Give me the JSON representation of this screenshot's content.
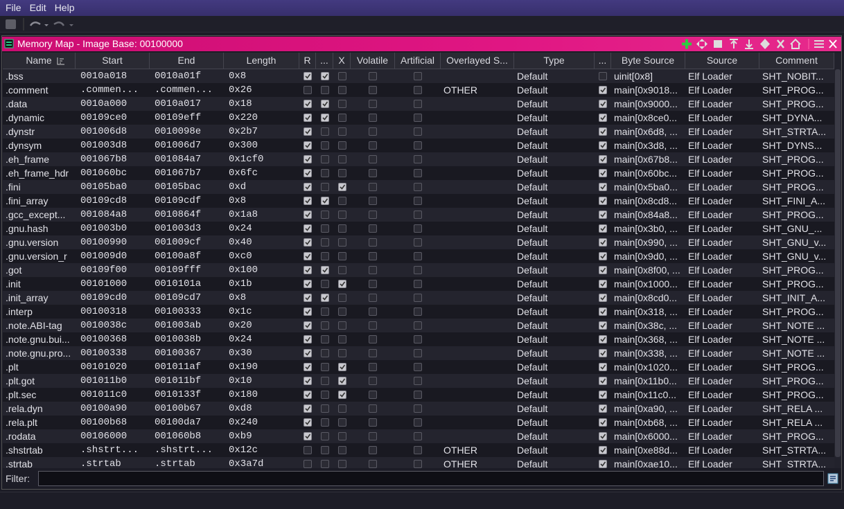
{
  "menu": {
    "items": [
      "File",
      "Edit",
      "Help"
    ]
  },
  "window": {
    "title": "Memory Map - Image Base: 00100000"
  },
  "table": {
    "columns": [
      "Name",
      "Start",
      "End",
      "Length",
      "R",
      "...",
      "X",
      "Volatile",
      "Artificial",
      "Overlayed S...",
      "Type",
      "...",
      "Byte Source",
      "Source",
      "Comment"
    ],
    "rows": [
      [
        ".bss",
        "0010a018",
        "0010a01f",
        "0x8",
        true,
        true,
        false,
        false,
        false,
        null,
        "Default",
        false,
        "uinit[0x8]",
        "Elf Loader",
        "SHT_NOBIT..."
      ],
      [
        ".comment",
        ".commen...",
        ".commen...",
        "0x26",
        false,
        false,
        false,
        false,
        false,
        "OTHER",
        "Default",
        true,
        "main[0x9018...",
        "Elf Loader",
        "SHT_PROG..."
      ],
      [
        ".data",
        "0010a000",
        "0010a017",
        "0x18",
        true,
        true,
        false,
        false,
        false,
        null,
        "Default",
        true,
        "main[0x9000...",
        "Elf Loader",
        "SHT_PROG..."
      ],
      [
        ".dynamic",
        "00109ce0",
        "00109eff",
        "0x220",
        true,
        true,
        false,
        false,
        false,
        null,
        "Default",
        true,
        "main[0x8ce0...",
        "Elf Loader",
        "SHT_DYNA..."
      ],
      [
        ".dynstr",
        "001006d8",
        "0010098e",
        "0x2b7",
        true,
        false,
        false,
        false,
        false,
        null,
        "Default",
        true,
        "main[0x6d8, ...",
        "Elf Loader",
        "SHT_STRTA..."
      ],
      [
        ".dynsym",
        "001003d8",
        "001006d7",
        "0x300",
        true,
        false,
        false,
        false,
        false,
        null,
        "Default",
        true,
        "main[0x3d8, ...",
        "Elf Loader",
        "SHT_DYNS..."
      ],
      [
        ".eh_frame",
        "001067b8",
        "001084a7",
        "0x1cf0",
        true,
        false,
        false,
        false,
        false,
        null,
        "Default",
        true,
        "main[0x67b8...",
        "Elf Loader",
        "SHT_PROG..."
      ],
      [
        ".eh_frame_hdr",
        "001060bc",
        "001067b7",
        "0x6fc",
        true,
        false,
        false,
        false,
        false,
        null,
        "Default",
        true,
        "main[0x60bc...",
        "Elf Loader",
        "SHT_PROG..."
      ],
      [
        ".fini",
        "00105ba0",
        "00105bac",
        "0xd",
        true,
        false,
        true,
        false,
        false,
        null,
        "Default",
        true,
        "main[0x5ba0...",
        "Elf Loader",
        "SHT_PROG..."
      ],
      [
        ".fini_array",
        "00109cd8",
        "00109cdf",
        "0x8",
        true,
        true,
        false,
        false,
        false,
        null,
        "Default",
        true,
        "main[0x8cd8...",
        "Elf Loader",
        "SHT_FINI_A..."
      ],
      [
        ".gcc_except...",
        "001084a8",
        "0010864f",
        "0x1a8",
        true,
        false,
        false,
        false,
        false,
        null,
        "Default",
        true,
        "main[0x84a8...",
        "Elf Loader",
        "SHT_PROG..."
      ],
      [
        ".gnu.hash",
        "001003b0",
        "001003d3",
        "0x24",
        true,
        false,
        false,
        false,
        false,
        null,
        "Default",
        true,
        "main[0x3b0, ...",
        "Elf Loader",
        "SHT_GNU_..."
      ],
      [
        ".gnu.version",
        "00100990",
        "001009cf",
        "0x40",
        true,
        false,
        false,
        false,
        false,
        null,
        "Default",
        true,
        "main[0x990, ...",
        "Elf Loader",
        "SHT_GNU_v..."
      ],
      [
        ".gnu.version_r",
        "001009d0",
        "00100a8f",
        "0xc0",
        true,
        false,
        false,
        false,
        false,
        null,
        "Default",
        true,
        "main[0x9d0, ...",
        "Elf Loader",
        "SHT_GNU_v..."
      ],
      [
        ".got",
        "00109f00",
        "00109fff",
        "0x100",
        true,
        true,
        false,
        false,
        false,
        null,
        "Default",
        true,
        "main[0x8f00, ...",
        "Elf Loader",
        "SHT_PROG..."
      ],
      [
        ".init",
        "00101000",
        "0010101a",
        "0x1b",
        true,
        false,
        true,
        false,
        false,
        null,
        "Default",
        true,
        "main[0x1000...",
        "Elf Loader",
        "SHT_PROG..."
      ],
      [
        ".init_array",
        "00109cd0",
        "00109cd7",
        "0x8",
        true,
        true,
        false,
        false,
        false,
        null,
        "Default",
        true,
        "main[0x8cd0...",
        "Elf Loader",
        "SHT_INIT_A..."
      ],
      [
        ".interp",
        "00100318",
        "00100333",
        "0x1c",
        true,
        false,
        false,
        false,
        false,
        null,
        "Default",
        true,
        "main[0x318, ...",
        "Elf Loader",
        "SHT_PROG..."
      ],
      [
        ".note.ABI-tag",
        "0010038c",
        "001003ab",
        "0x20",
        true,
        false,
        false,
        false,
        false,
        null,
        "Default",
        true,
        "main[0x38c, ...",
        "Elf Loader",
        "SHT_NOTE ..."
      ],
      [
        ".note.gnu.bui...",
        "00100368",
        "0010038b",
        "0x24",
        true,
        false,
        false,
        false,
        false,
        null,
        "Default",
        true,
        "main[0x368, ...",
        "Elf Loader",
        "SHT_NOTE ..."
      ],
      [
        ".note.gnu.pro...",
        "00100338",
        "00100367",
        "0x30",
        true,
        false,
        false,
        false,
        false,
        null,
        "Default",
        true,
        "main[0x338, ...",
        "Elf Loader",
        "SHT_NOTE ..."
      ],
      [
        ".plt",
        "00101020",
        "001011af",
        "0x190",
        true,
        false,
        true,
        false,
        false,
        null,
        "Default",
        true,
        "main[0x1020...",
        "Elf Loader",
        "SHT_PROG..."
      ],
      [
        ".plt.got",
        "001011b0",
        "001011bf",
        "0x10",
        true,
        false,
        true,
        false,
        false,
        null,
        "Default",
        true,
        "main[0x11b0...",
        "Elf Loader",
        "SHT_PROG..."
      ],
      [
        ".plt.sec",
        "001011c0",
        "0010133f",
        "0x180",
        true,
        false,
        true,
        false,
        false,
        null,
        "Default",
        true,
        "main[0x11c0...",
        "Elf Loader",
        "SHT_PROG..."
      ],
      [
        ".rela.dyn",
        "00100a90",
        "00100b67",
        "0xd8",
        true,
        false,
        false,
        false,
        false,
        null,
        "Default",
        true,
        "main[0xa90, ...",
        "Elf Loader",
        "SHT_RELA ..."
      ],
      [
        ".rela.plt",
        "00100b68",
        "00100da7",
        "0x240",
        true,
        false,
        false,
        false,
        false,
        null,
        "Default",
        true,
        "main[0xb68, ...",
        "Elf Loader",
        "SHT_RELA ..."
      ],
      [
        ".rodata",
        "00106000",
        "001060b8",
        "0xb9",
        true,
        false,
        false,
        false,
        false,
        null,
        "Default",
        true,
        "main[0x6000...",
        "Elf Loader",
        "SHT_PROG..."
      ],
      [
        ".shstrtab",
        ".shstrt...",
        ".shstrt...",
        "0x12c",
        false,
        false,
        false,
        false,
        false,
        "OTHER",
        "Default",
        true,
        "main[0xe88d...",
        "Elf Loader",
        "SHT_STRTA..."
      ],
      [
        ".strtab",
        ".strtab",
        ".strtab",
        "0x3a7d",
        false,
        false,
        false,
        false,
        false,
        "OTHER",
        "Default",
        true,
        "main[0xae10...",
        "Elf Loader",
        "SHT_STRTA..."
      ]
    ]
  },
  "filter": {
    "label": "Filter:"
  }
}
